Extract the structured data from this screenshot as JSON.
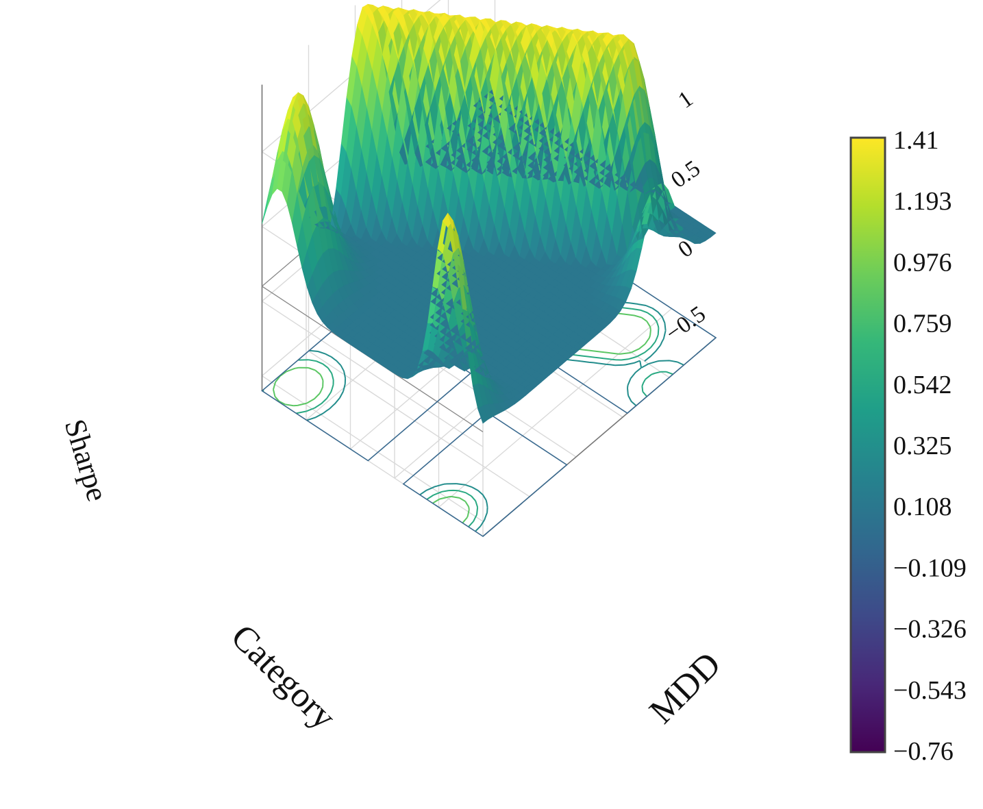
{
  "chart_data": {
    "type": "surface3d",
    "title": "",
    "axes": {
      "x": {
        "label": "Category"
      },
      "y": {
        "label": "MDD"
      },
      "z": {
        "label": "Sharpe",
        "ticks": [
          -0.5,
          0,
          0.5,
          1
        ],
        "tick_labels": [
          "−0.5",
          "0",
          "0.5",
          "1"
        ],
        "range": [
          -0.6,
          1.45
        ]
      }
    },
    "x_values": [
      0,
      1,
      2,
      3,
      4,
      5
    ],
    "y_values": [
      0,
      1,
      2,
      3,
      4,
      5
    ],
    "z_values": [
      [
        0.1,
        0.1,
        0.1,
        0.1,
        0.1,
        0.1
      ],
      [
        0.1,
        0.1,
        0.1,
        0.1,
        0.1,
        0.1
      ],
      [
        0.1,
        0.1,
        0.1,
        0.1,
        0.1,
        0.1
      ],
      [
        0.1,
        0.1,
        0.1,
        0.1,
        0.1,
        0.1
      ],
      [
        0.1,
        0.1,
        0.1,
        0.1,
        0.1,
        0.1
      ],
      [
        0.1,
        0.1,
        0.1,
        0.1,
        0.1,
        0.1
      ]
    ],
    "peaks": [
      {
        "x": 0.8,
        "y": 0.0,
        "z": 1.41,
        "sigma": 0.32
      },
      {
        "x": 0.0,
        "y": 3.8,
        "z": 0.75,
        "sigma": 0.33
      },
      {
        "x": 4.6,
        "y": 0.4,
        "z": 1.37,
        "sigma": 0.38
      },
      {
        "x": 1.4,
        "y": 1.6,
        "z": -0.6,
        "sigma": 0.45
      },
      {
        "x": 3.6,
        "y": 3.4,
        "z": -0.25,
        "sigma": 0.7
      }
    ],
    "ridge": {
      "start": [
        5.0,
        2.2
      ],
      "end": [
        1.2,
        4.2
      ],
      "peak_z": 1.4,
      "half_width": 0.75
    },
    "colorscale": {
      "name": "Viridis",
      "min": -0.76,
      "max": 1.41,
      "tick_labels": [
        "1.41",
        "1.193",
        "0.976",
        "0.759",
        "0.542",
        "0.325",
        "0.108",
        "−0.109",
        "−0.326",
        "−0.543",
        "−0.76"
      ]
    },
    "contours_projected": true,
    "grid": true
  }
}
